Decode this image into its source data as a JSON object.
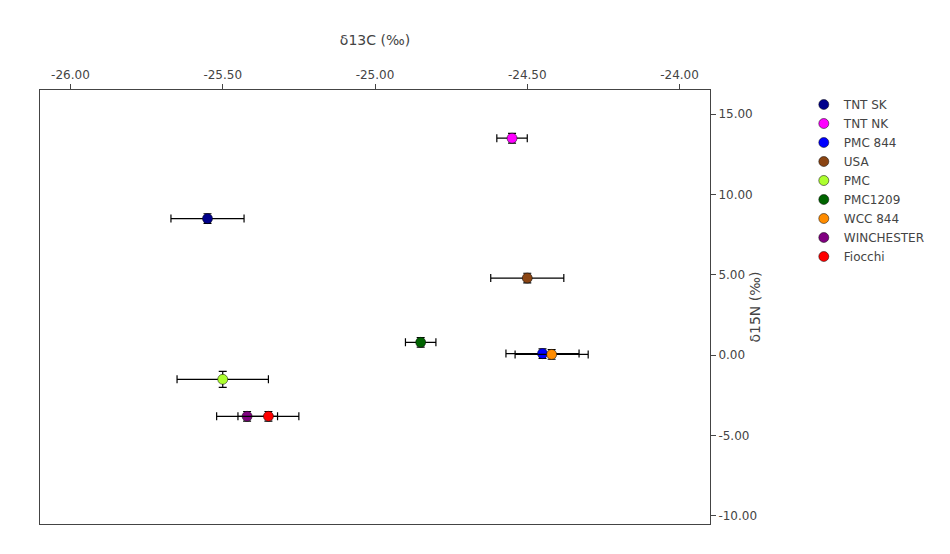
{
  "chart_data": {
    "type": "scatter",
    "xlabel": "δ13C (‰)",
    "ylabel": "δ15N (‰)",
    "marker": "circle",
    "series": [
      {
        "name": "TNT SK",
        "color": "#00008B",
        "x": [
          -25.55
        ],
        "values": [
          8.5
        ],
        "xerr": [
          0.12
        ],
        "yerr": [
          0.3
        ]
      },
      {
        "name": "TNT NK",
        "color": "#FF00FF",
        "x": [
          -24.55
        ],
        "values": [
          13.5
        ],
        "xerr": [
          0.05
        ],
        "yerr": [
          0.3
        ]
      },
      {
        "name": "PMC 844",
        "color": "#0000FF",
        "x": [
          -24.45
        ],
        "values": [
          0.1
        ],
        "xerr": [
          0.12
        ],
        "yerr": [
          0.3
        ]
      },
      {
        "name": "USA",
        "color": "#8B4513",
        "x": [
          -24.5
        ],
        "values": [
          4.8
        ],
        "xerr": [
          0.12
        ],
        "yerr": [
          0.3
        ]
      },
      {
        "name": "PMC",
        "color": "#ADFF2F",
        "x": [
          -25.5
        ],
        "values": [
          -1.5
        ],
        "xerr": [
          0.15
        ],
        "yerr": [
          0.5
        ]
      },
      {
        "name": "PMC1209",
        "color": "#006400",
        "x": [
          -24.85
        ],
        "values": [
          0.8
        ],
        "xerr": [
          0.05
        ],
        "yerr": [
          0.3
        ]
      },
      {
        "name": "WCC 844",
        "color": "#FF8C00",
        "x": [
          -24.42
        ],
        "values": [
          0.05
        ],
        "xerr": [
          0.12
        ],
        "yerr": [
          0.3
        ]
      },
      {
        "name": "WINCHESTER",
        "color": "#800080",
        "x": [
          -25.42
        ],
        "values": [
          -3.8
        ],
        "xerr": [
          0.1
        ],
        "yerr": [
          0.3
        ]
      },
      {
        "name": "Fiocchi",
        "color": "#FF0000",
        "x": [
          -25.35
        ],
        "values": [
          -3.8
        ],
        "xerr": [
          0.1
        ],
        "yerr": [
          0.3
        ]
      }
    ],
    "xlim": [
      -26.1,
      -23.9
    ],
    "ylim": [
      -10.5,
      16.5
    ],
    "xticks": [
      {
        "value": -26.0,
        "label": "-26.00"
      },
      {
        "value": -25.5,
        "label": "-25.50"
      },
      {
        "value": -25.0,
        "label": "-25.00"
      },
      {
        "value": -24.5,
        "label": "-24.50"
      },
      {
        "value": -24.0,
        "label": "-24.00"
      }
    ],
    "yticks": [
      {
        "value": -10.0,
        "label": "-10.00"
      },
      {
        "value": -5.0,
        "label": "-5.00"
      },
      {
        "value": 0.0,
        "label": "0.00"
      },
      {
        "value": 5.0,
        "label": "5.00"
      },
      {
        "value": 10.0,
        "label": "10.00"
      },
      {
        "value": 15.0,
        "label": "15.00"
      }
    ],
    "grid": false,
    "legend": "right"
  }
}
